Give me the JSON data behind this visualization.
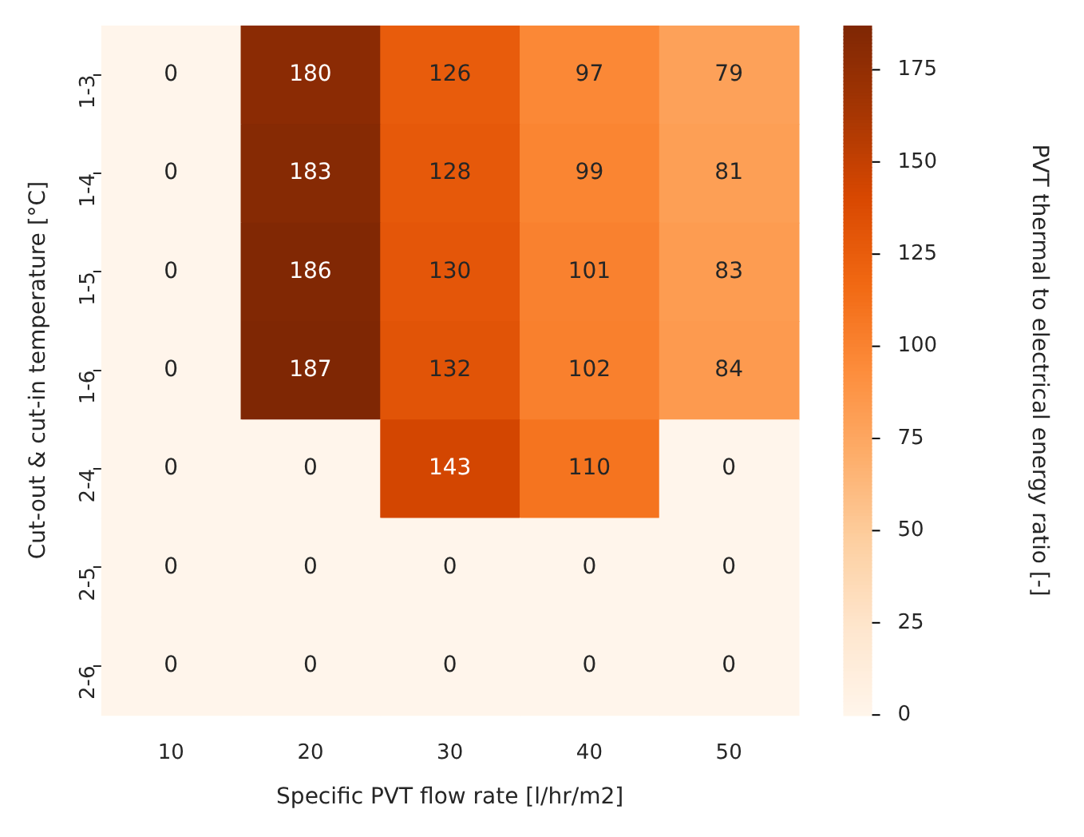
{
  "chart_data": {
    "type": "heatmap",
    "xlabel": "Specific PVT flow rate [l/hr/m2]",
    "ylabel": "Cut-out & cut-in temperature [°C]",
    "clabel": "PVT thermal to electrical energy ratio [-]",
    "categories": [
      "10",
      "20",
      "30",
      "40",
      "50"
    ],
    "y_categories": [
      "1-3",
      "1-4",
      "1-5",
      "1-6",
      "2-4",
      "2-5",
      "2-6"
    ],
    "cells": [
      [
        0,
        180,
        126,
        97,
        79
      ],
      [
        0,
        183,
        128,
        99,
        81
      ],
      [
        0,
        186,
        130,
        101,
        83
      ],
      [
        0,
        187,
        132,
        102,
        84
      ],
      [
        0,
        0,
        143,
        110,
        0
      ],
      [
        0,
        0,
        0,
        0,
        0
      ],
      [
        0,
        0,
        0,
        0,
        0
      ]
    ],
    "data_labels": true,
    "clim": [
      0,
      187
    ],
    "cticks": [
      0,
      25,
      50,
      75,
      100,
      125,
      150,
      175
    ]
  }
}
